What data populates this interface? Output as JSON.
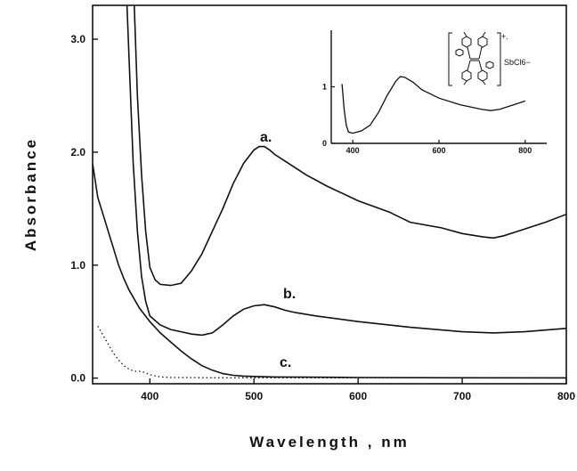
{
  "chart_data": [
    {
      "type": "line",
      "xlabel": "Wavelength , nm",
      "ylabel": "Absorbance",
      "xlim": [
        345,
        800
      ],
      "ylim": [
        -0.05,
        3.3
      ],
      "xticks": [
        400,
        500,
        600,
        700,
        800
      ],
      "yticks": [
        0.0,
        1.0,
        2.0,
        3.0
      ],
      "ytick_labels": [
        "0.0",
        "1.0",
        "2.0",
        "3.0"
      ],
      "grid": false,
      "series": [
        {
          "name": "a.",
          "style": "solid",
          "x": [
            385,
            388,
            392,
            396,
            400,
            405,
            410,
            420,
            430,
            440,
            450,
            460,
            470,
            480,
            490,
            500,
            505,
            510,
            515,
            520,
            530,
            540,
            550,
            570,
            600,
            630,
            650,
            680,
            700,
            720,
            730,
            740,
            760,
            780,
            800
          ],
          "y": [
            3.3,
            2.5,
            1.8,
            1.3,
            0.98,
            0.87,
            0.83,
            0.82,
            0.84,
            0.95,
            1.1,
            1.3,
            1.5,
            1.72,
            1.9,
            2.02,
            2.05,
            2.05,
            2.02,
            1.98,
            1.92,
            1.86,
            1.8,
            1.7,
            1.57,
            1.47,
            1.38,
            1.33,
            1.28,
            1.25,
            1.24,
            1.26,
            1.32,
            1.38,
            1.45
          ]
        },
        {
          "name": "b.",
          "style": "solid",
          "x": [
            378,
            381,
            384,
            388,
            392,
            396,
            400,
            410,
            420,
            430,
            440,
            450,
            460,
            470,
            480,
            490,
            500,
            510,
            520,
            530,
            540,
            560,
            600,
            650,
            700,
            730,
            760,
            800
          ],
          "y": [
            3.3,
            2.6,
            1.9,
            1.3,
            0.9,
            0.68,
            0.55,
            0.47,
            0.43,
            0.41,
            0.39,
            0.38,
            0.4,
            0.47,
            0.55,
            0.61,
            0.64,
            0.65,
            0.63,
            0.6,
            0.58,
            0.55,
            0.5,
            0.45,
            0.41,
            0.4,
            0.41,
            0.44
          ]
        },
        {
          "name": "c.",
          "style": "solid",
          "x": [
            345,
            350,
            355,
            360,
            365,
            370,
            375,
            380,
            390,
            400,
            410,
            420,
            430,
            440,
            450,
            460,
            470,
            480,
            490,
            500,
            520,
            550,
            600,
            700,
            800
          ],
          "y": [
            1.9,
            1.6,
            1.45,
            1.3,
            1.15,
            1.0,
            0.88,
            0.78,
            0.62,
            0.5,
            0.4,
            0.32,
            0.24,
            0.17,
            0.11,
            0.07,
            0.04,
            0.025,
            0.018,
            0.015,
            0.01,
            0.008,
            0.005,
            0.003,
            0.002
          ]
        },
        {
          "name": "",
          "style": "dotted",
          "x": [
            350,
            355,
            360,
            365,
            370,
            375,
            380,
            385,
            390,
            395,
            400,
            410,
            420,
            440,
            460,
            500,
            600,
            800
          ],
          "y": [
            0.46,
            0.38,
            0.3,
            0.22,
            0.16,
            0.11,
            0.08,
            0.06,
            0.06,
            0.05,
            0.03,
            0.01,
            0.005,
            0.004,
            0.003,
            0.003,
            0.002,
            0.002
          ]
        }
      ]
    },
    {
      "type": "line",
      "title": "",
      "xlabel": "",
      "ylabel": "",
      "xlim": [
        350,
        850
      ],
      "ylim": [
        0,
        2.0
      ],
      "xticks": [
        400,
        600,
        800
      ],
      "yticks": [
        0,
        1
      ],
      "annotation": "SbCl6−",
      "annotation_superscript": "+.",
      "series": [
        {
          "name": "",
          "x": [
            375,
            380,
            385,
            390,
            400,
            420,
            440,
            460,
            480,
            500,
            510,
            520,
            540,
            560,
            600,
            650,
            700,
            720,
            740,
            760,
            780,
            800
          ],
          "y": [
            1.05,
            0.6,
            0.32,
            0.2,
            0.18,
            0.22,
            0.32,
            0.55,
            0.85,
            1.1,
            1.18,
            1.17,
            1.08,
            0.95,
            0.8,
            0.68,
            0.6,
            0.58,
            0.6,
            0.65,
            0.7,
            0.75
          ]
        }
      ]
    }
  ]
}
